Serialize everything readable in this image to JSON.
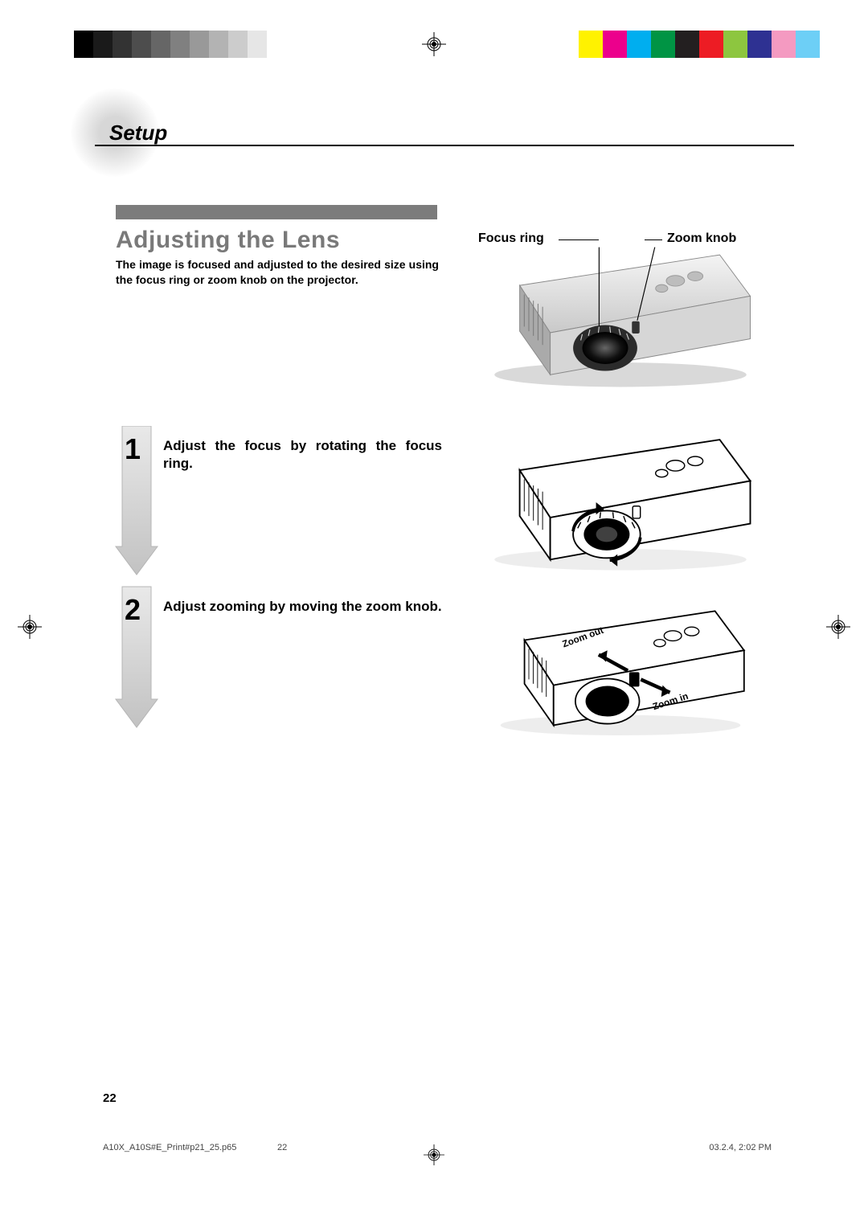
{
  "calibration": {
    "grayscale": [
      "#000000",
      "#1a1a1a",
      "#333333",
      "#4d4d4d",
      "#666666",
      "#808080",
      "#999999",
      "#b3b3b3",
      "#cccccc",
      "#e6e6e6"
    ],
    "colors": [
      "#fff200",
      "#ec008c",
      "#00aeef",
      "#009444",
      "#231f20",
      "#ed1c24",
      "#8dc63f",
      "#2e3192",
      "#f49ac1",
      "#6dcff6"
    ]
  },
  "header": {
    "title": "Setup"
  },
  "section": {
    "title": "Adjusting the Lens",
    "intro": "The image is focused and adjusted to the desired size using the focus ring or zoom knob on the projector.",
    "bar_color": "#7c7c7c",
    "title_color": "#797979"
  },
  "labels": {
    "focus_ring": "Focus ring",
    "zoom_knob": "Zoom knob",
    "zoom_in": "Zoom in",
    "zoom_out": "Zoom out"
  },
  "steps": [
    {
      "num": "1",
      "text": "Adjust the focus by rotating the focus ring."
    },
    {
      "num": "2",
      "text": "Adjust zooming by moving the zoom knob."
    }
  ],
  "page_number": "22",
  "footer": {
    "filename": "A10X_A10S#E_Print#p21_25.p65",
    "page": "22",
    "timestamp": "03.2.4, 2:02 PM"
  }
}
